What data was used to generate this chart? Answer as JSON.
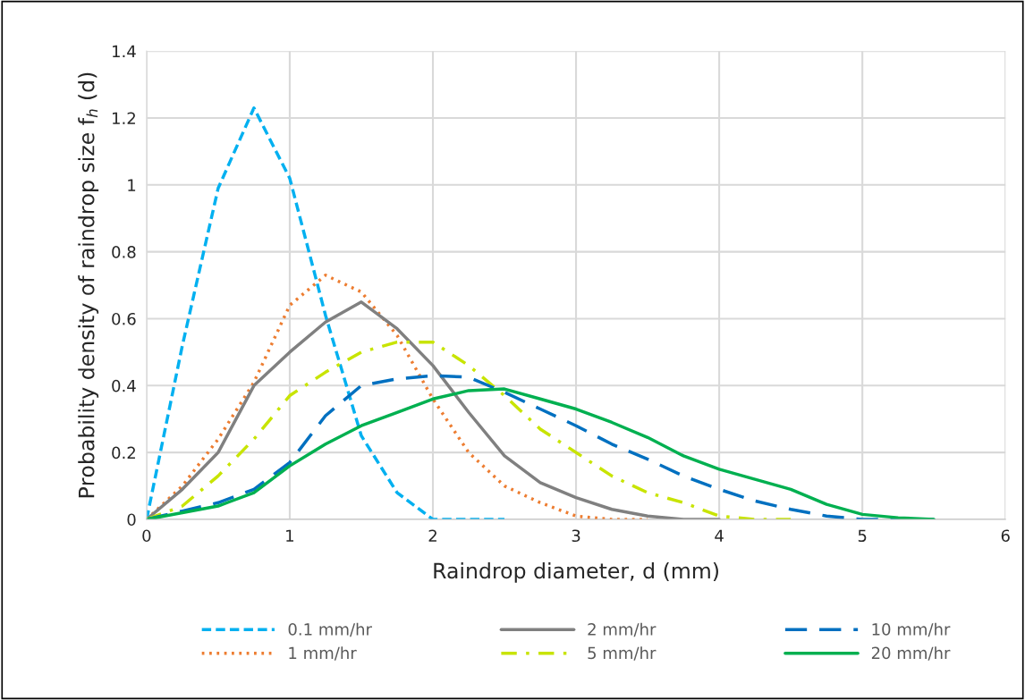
{
  "chart_data": {
    "type": "line",
    "xlabel": "Raindrop diameter, d (mm)",
    "ylabel": "Probability density of raindrop size f$_{h}$ (d)",
    "xlim": [
      0,
      6
    ],
    "xticks": [
      0,
      1,
      2,
      3,
      4,
      5,
      6
    ],
    "ylim": [
      0,
      1.4
    ],
    "yticks": [
      0,
      {
        "value": 0.2,
        "label": "0.2"
      },
      {
        "value": 0.4,
        "label": "0.4"
      },
      {
        "value": 0.6,
        "label": "0.6"
      },
      {
        "value": 0.8,
        "label": "0.8"
      },
      1,
      {
        "value": 1.2,
        "label": "1.2"
      },
      {
        "value": 1.4,
        "label": "1.4"
      }
    ],
    "grid": true,
    "legend": "bottom",
    "marker": "none",
    "series": [
      {
        "name": "0.1 mm/hr",
        "color": "#00b0f0",
        "line_style": "dashed",
        "x": [
          0,
          0.25,
          0.5,
          0.75,
          1,
          1.25,
          1.5,
          1.75,
          2,
          2.25,
          2.5
        ],
        "values": [
          0,
          0.52,
          0.99,
          1.23,
          1.02,
          0.61,
          0.25,
          0.08,
          0,
          0,
          0
        ]
      },
      {
        "name": "1 mm/hr",
        "color": "#ed7d31",
        "line_style": "dotted",
        "x": [
          0,
          0.25,
          0.5,
          0.75,
          1,
          1.25,
          1.5,
          1.75,
          2,
          2.25,
          2.5,
          2.75,
          3,
          3.25,
          3.5
        ],
        "values": [
          0,
          0.1,
          0.24,
          0.41,
          0.64,
          0.73,
          0.68,
          0.55,
          0.36,
          0.2,
          0.1,
          0.05,
          0.01,
          0,
          0
        ]
      },
      {
        "name": "2 mm/hr",
        "color": "#808080",
        "line_style": "solid",
        "x": [
          0,
          0.25,
          0.5,
          0.75,
          1,
          1.25,
          1.5,
          1.75,
          2,
          2.25,
          2.5,
          2.75,
          3,
          3.25,
          3.5,
          3.75,
          4
        ],
        "values": [
          0,
          0.09,
          0.2,
          0.4,
          0.5,
          0.59,
          0.65,
          0.57,
          0.46,
          0.32,
          0.19,
          0.11,
          0.065,
          0.03,
          0.01,
          0,
          0
        ]
      },
      {
        "name": "5 mm/hr",
        "color": "#c8e400",
        "line_style": "dashdot",
        "x": [
          0,
          0.25,
          0.5,
          0.75,
          1,
          1.25,
          1.5,
          1.75,
          2,
          2.25,
          2.5,
          2.75,
          3,
          3.25,
          3.5,
          3.75,
          4,
          4.25,
          4.5
        ],
        "values": [
          0,
          0.04,
          0.13,
          0.24,
          0.37,
          0.44,
          0.5,
          0.53,
          0.53,
          0.46,
          0.37,
          0.27,
          0.2,
          0.13,
          0.08,
          0.05,
          0.01,
          0,
          0
        ]
      },
      {
        "name": "10 mm/hr",
        "color": "#0070c0",
        "line_style": "longdash",
        "x": [
          0,
          0.25,
          0.5,
          0.75,
          1,
          1.25,
          1.5,
          1.75,
          2,
          2.25,
          2.5,
          2.75,
          3,
          3.25,
          3.5,
          3.75,
          4,
          4.25,
          4.5,
          4.75,
          5,
          5.25,
          5.5
        ],
        "values": [
          0,
          0.025,
          0.05,
          0.09,
          0.17,
          0.31,
          0.4,
          0.42,
          0.43,
          0.425,
          0.38,
          0.33,
          0.28,
          0.225,
          0.18,
          0.13,
          0.09,
          0.055,
          0.03,
          0.01,
          0,
          0,
          0
        ]
      },
      {
        "name": "20 mm/hr",
        "color": "#00b050",
        "line_style": "solid",
        "x": [
          0,
          0.25,
          0.5,
          0.75,
          1,
          1.25,
          1.5,
          1.75,
          2,
          2.25,
          2.5,
          2.75,
          3,
          3.25,
          3.5,
          3.75,
          4,
          4.25,
          4.5,
          4.75,
          5,
          5.25,
          5.5
        ],
        "values": [
          0,
          0.02,
          0.04,
          0.08,
          0.16,
          0.225,
          0.28,
          0.32,
          0.36,
          0.385,
          0.39,
          0.36,
          0.33,
          0.29,
          0.245,
          0.19,
          0.15,
          0.12,
          0.09,
          0.045,
          0.015,
          0.005,
          0
        ]
      }
    ]
  }
}
